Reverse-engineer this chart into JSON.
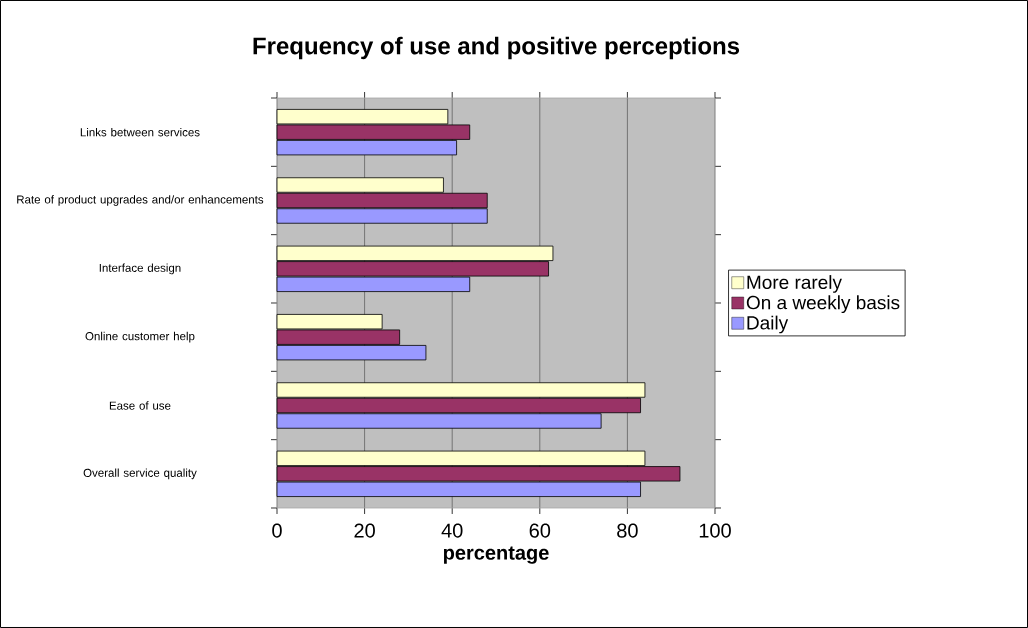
{
  "chart_data": {
    "type": "bar",
    "orientation": "horizontal",
    "title": "Frequency of use and positive perceptions",
    "xlabel": "percentage",
    "categories": [
      "Links between services",
      "Rate of product upgrades and/or enhancements",
      "Interface design",
      "Online customer help",
      "Ease of use",
      "Overall service quality"
    ],
    "series": [
      {
        "name": "More rarely",
        "color": "#ffffcc",
        "values": [
          39,
          38,
          63,
          24,
          84,
          84
        ]
      },
      {
        "name": "On a weekly basis",
        "color": "#993366",
        "values": [
          44,
          48,
          62,
          28,
          83,
          92
        ]
      },
      {
        "name": "Daily",
        "color": "#9999ff",
        "values": [
          41,
          48,
          44,
          34,
          74,
          83
        ]
      }
    ],
    "xlim": [
      0,
      100
    ],
    "xticks": [
      0,
      20,
      40,
      60,
      80,
      100
    ],
    "grid": "x",
    "legend": "right"
  }
}
